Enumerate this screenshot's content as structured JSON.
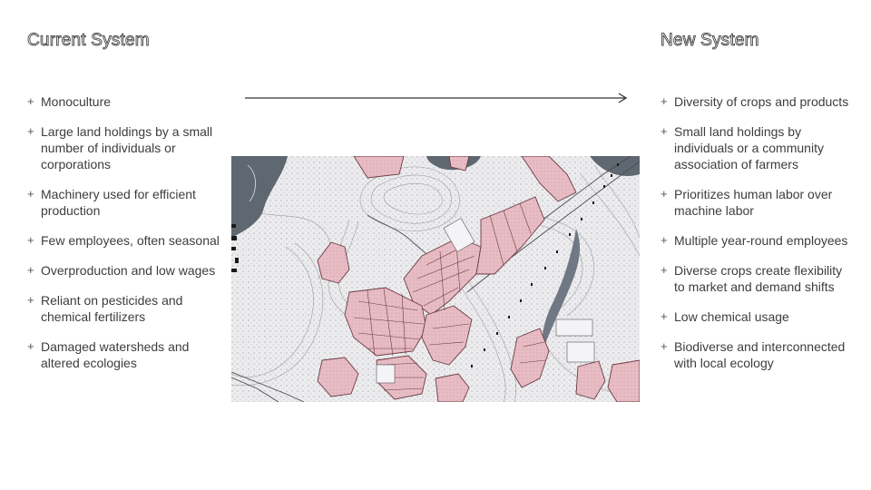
{
  "current": {
    "title": "Current System",
    "items": [
      "Monoculture",
      "Large land holdings by a small number of individuals or corporations",
      "Machinery used for efficient production",
      "Few employees, often seasonal",
      "Overproduction and low wages",
      "Reliant on pesticides and chemical fertilizers",
      "Damaged watersheds and altered ecologies"
    ]
  },
  "new": {
    "title": "New System",
    "items": [
      "Diversity of crops and products",
      "Small land holdings by individuals or a community association of farmers",
      "Prioritizes human labor over machine labor",
      "Multiple year-round employees",
      "Diverse crops create flexibility to market and demand shifts",
      "Low chemical usage",
      "Biodiverse and interconnected with local ecology"
    ]
  },
  "colors": {
    "text": "#3d3d3d",
    "water": "#5f6770",
    "field_pink": "#e8bcc4",
    "field_outline": "#6b3b44"
  },
  "icons": {
    "arrow": "right-arrow-icon"
  }
}
